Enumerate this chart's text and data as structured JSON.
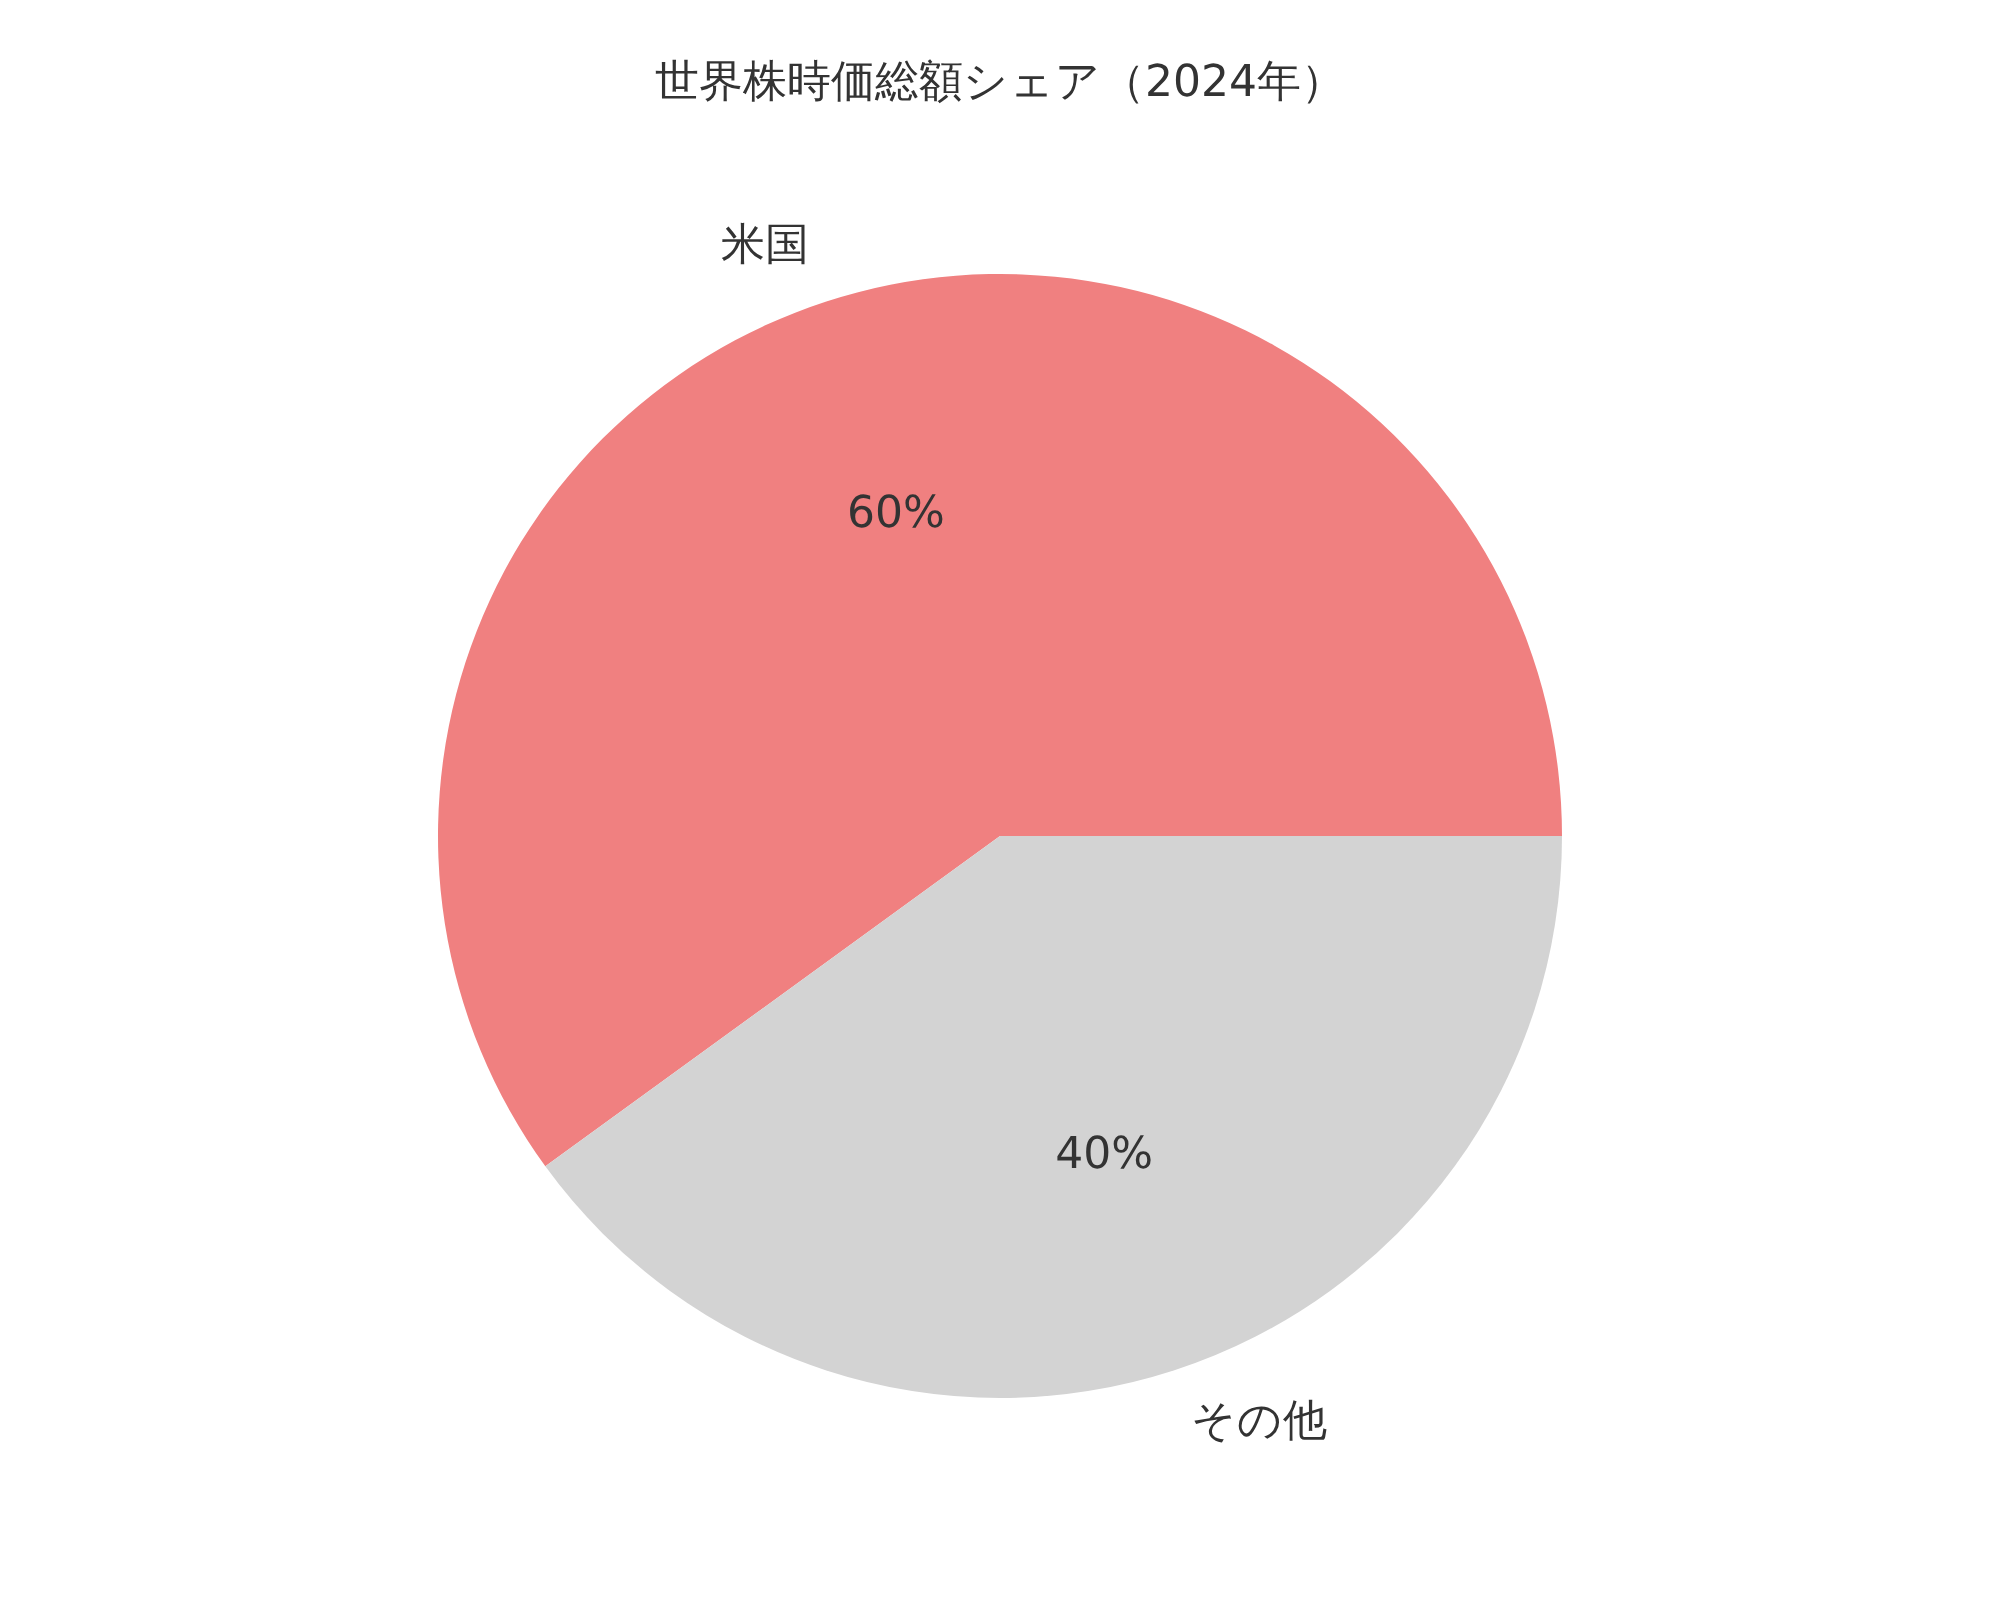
{
  "chart_data": {
    "type": "pie",
    "title": "世界株時価総額シェア（2024年）",
    "categories": [
      "米国",
      "その他"
    ],
    "values": [
      60,
      40
    ],
    "colors": [
      "#f08080",
      "#d3d3d3"
    ],
    "value_labels": [
      "60%",
      "40%"
    ],
    "legend": false
  }
}
